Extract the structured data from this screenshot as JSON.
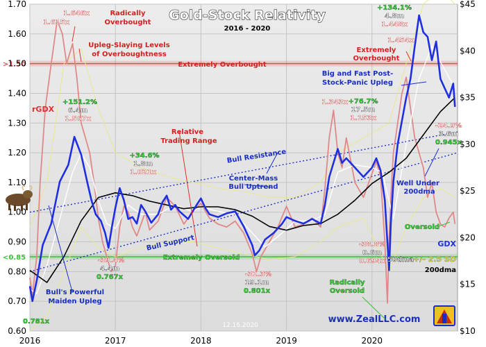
{
  "chart_data": {
    "type": "line",
    "title": "Gold-Stock Relativity",
    "subtitle": "2016 - 2020",
    "date_stamp": "12.16.2020",
    "website": "www.ZealLLC.com",
    "y_left": {
      "label": "rGDX",
      "ylim": [
        0.6,
        1.7
      ],
      "ticks": [
        "0.60",
        "0.70",
        "0.80",
        "0.90",
        "1.00",
        "1.10",
        "1.20",
        "1.30",
        "1.40",
        "1.50",
        "1.60",
        "1.70"
      ]
    },
    "y_right": {
      "label": "GDX",
      "ylim": [
        10,
        45
      ],
      "ticks": [
        "$10",
        "$15",
        "$20",
        "$25",
        "$30",
        "$35",
        "$40",
        "$45"
      ]
    },
    "x_ticks": [
      "2016",
      "2017",
      "2018",
      "2019",
      "2020"
    ],
    "x_range": [
      2016.0,
      2021.0
    ],
    "legend": {
      "gdx": "GDX",
      "ma50": "50dma",
      "sd": "+/- 2.5 SD",
      "ma200": "200dma"
    },
    "reference_lines": [
      {
        "label": ">1.50",
        "value": 1.5,
        "color": "#e34a4a"
      },
      {
        "label": "<0.85",
        "value": 0.85,
        "color": "#38c038"
      }
    ],
    "annotations": [
      {
        "id": "a1",
        "text": "Radically",
        "style": "red"
      },
      {
        "id": "a2",
        "text": "Overbought",
        "style": "red"
      },
      {
        "id": "a3",
        "text": "1.646x",
        "style": "white-red"
      },
      {
        "id": "a4",
        "text": "1.615x",
        "style": "white-red"
      },
      {
        "id": "a5",
        "text": "Upleg-Slaying Levels",
        "style": "red"
      },
      {
        "id": "a6",
        "text": "of Overboughtness",
        "style": "red"
      },
      {
        "id": "a7",
        "text": "Extremely Overbought",
        "style": "red"
      },
      {
        "id": "a8",
        "text": "+151.2%",
        "style": "green"
      },
      {
        "id": "a9",
        "text": "6.4m",
        "style": "white"
      },
      {
        "id": "a10",
        "text": "1.567x",
        "style": "white-red"
      },
      {
        "id": "a11",
        "text": "Relative",
        "style": "red"
      },
      {
        "id": "a12",
        "text": "Trading Range",
        "style": "red"
      },
      {
        "id": "a13",
        "text": "+34.6%",
        "style": "green"
      },
      {
        "id": "a14",
        "text": "1.8m",
        "style": "white"
      },
      {
        "id": "a15",
        "text": "1.021x",
        "style": "white-red"
      },
      {
        "id": "a16",
        "text": "Bull Resistance",
        "style": "blue"
      },
      {
        "id": "a17",
        "text": "Center-Mass",
        "style": "blue"
      },
      {
        "id": "a18",
        "text": "Bull Uptrend",
        "style": "blue"
      },
      {
        "id": "a19",
        "text": "Bull Support",
        "style": "blue"
      },
      {
        "id": "a20",
        "text": "Extremely Oversold",
        "style": "green"
      },
      {
        "id": "a21",
        "text": "-39.4%",
        "style": "white-red"
      },
      {
        "id": "a22",
        "text": "4.4m",
        "style": "white"
      },
      {
        "id": "a23",
        "text": "0.767x",
        "style": "green"
      },
      {
        "id": "a24",
        "text": "-31.3%",
        "style": "white-red"
      },
      {
        "id": "a25",
        "text": "19.1m",
        "style": "white"
      },
      {
        "id": "a26",
        "text": "0.801x",
        "style": "green"
      },
      {
        "id": "a27",
        "text": "Bull's Powerful",
        "style": "blue"
      },
      {
        "id": "a28",
        "text": "Maiden Upleg",
        "style": "blue"
      },
      {
        "id": "a29",
        "text": "0.781x",
        "style": "green"
      },
      {
        "id": "a30",
        "text": "1.343x",
        "style": "white-red"
      },
      {
        "id": "a31",
        "text": "+76.7%",
        "style": "green"
      },
      {
        "id": "a32",
        "text": "17.5m",
        "style": "white"
      },
      {
        "id": "a33",
        "text": "1.153x",
        "style": "white-red"
      },
      {
        "id": "a34",
        "text": "+134.1%",
        "style": "green"
      },
      {
        "id": "a35",
        "text": "4.8m",
        "style": "white"
      },
      {
        "id": "a36",
        "text": "1.448x",
        "style": "white-red"
      },
      {
        "id": "a37",
        "text": "1.454x",
        "style": "white-red"
      },
      {
        "id": "a38",
        "text": "Extremely",
        "style": "red"
      },
      {
        "id": "a39",
        "text": "Overbought",
        "style": "red"
      },
      {
        "id": "a40",
        "text": "Big and Fast Post-",
        "style": "blue"
      },
      {
        "id": "a41",
        "text": "Stock-Panic Upleg",
        "style": "blue"
      },
      {
        "id": "a42",
        "text": "-24.9%",
        "style": "white-red"
      },
      {
        "id": "a43",
        "text": "3.6m",
        "style": "white"
      },
      {
        "id": "a44",
        "text": "0.945x",
        "style": "green"
      },
      {
        "id": "a45",
        "text": "Well Under",
        "style": "blue"
      },
      {
        "id": "a46",
        "text": "200dma",
        "style": "blue"
      },
      {
        "id": "a47",
        "text": "Oversold",
        "style": "green"
      },
      {
        "id": "a48",
        "text": "-38.8%",
        "style": "white-red"
      },
      {
        "id": "a49",
        "text": "0.6m",
        "style": "white"
      },
      {
        "id": "a50",
        "text": "0.694x",
        "style": "white-red"
      },
      {
        "id": "a51",
        "text": "Radically",
        "style": "green"
      },
      {
        "id": "a52",
        "text": "Oversold",
        "style": "green"
      }
    ],
    "series": [
      {
        "name": "GDX",
        "axis": "right",
        "color": "#1f2fe0",
        "x": [
          2016.0,
          2016.03,
          2016.08,
          2016.15,
          2016.25,
          2016.35,
          2016.45,
          2016.52,
          2016.6,
          2016.67,
          2016.72,
          2016.77,
          2016.83,
          2016.88,
          2016.92,
          2016.96,
          2017.0,
          2017.05,
          2017.1,
          2017.15,
          2017.2,
          2017.25,
          2017.3,
          2017.35,
          2017.42,
          2017.5,
          2017.55,
          2017.6,
          2017.65,
          2017.7,
          2017.75,
          2017.85,
          2017.95,
          2018.0,
          2018.05,
          2018.1,
          2018.2,
          2018.3,
          2018.4,
          2018.5,
          2018.6,
          2018.63,
          2018.68,
          2018.75,
          2018.85,
          2018.95,
          2019.0,
          2019.1,
          2019.2,
          2019.3,
          2019.4,
          2019.45,
          2019.5,
          2019.6,
          2019.65,
          2019.7,
          2019.8,
          2019.9,
          2020.0,
          2020.05,
          2020.1,
          2020.15,
          2020.18,
          2020.2,
          2020.22,
          2020.25,
          2020.3,
          2020.35,
          2020.4,
          2020.45,
          2020.5,
          2020.55,
          2020.6,
          2020.65,
          2020.7,
          2020.75,
          2020.8,
          2020.85,
          2020.9,
          2020.95,
          2020.97
        ],
        "values": [
          14.8,
          13.2,
          15.4,
          19.2,
          21.5,
          26.0,
          27.8,
          30.8,
          28.9,
          26.0,
          24.0,
          22.5,
          21.8,
          20.5,
          18.9,
          21.2,
          23.2,
          25.3,
          24.0,
          22.0,
          22.2,
          21.5,
          23.5,
          22.8,
          21.6,
          22.5,
          23.8,
          24.5,
          23.0,
          23.5,
          22.8,
          22.0,
          23.5,
          24.2,
          23.2,
          22.5,
          22.2,
          22.6,
          22.8,
          21.2,
          19.2,
          18.1,
          18.6,
          19.8,
          20.5,
          21.5,
          22.2,
          21.8,
          21.5,
          22.0,
          21.5,
          23.5,
          26.5,
          29.5,
          28.0,
          28.5,
          27.5,
          26.5,
          27.5,
          28.5,
          27.2,
          24.0,
          19.5,
          16.5,
          21.5,
          26.0,
          30.0,
          32.5,
          35.0,
          37.0,
          40.5,
          43.8,
          42.0,
          41.5,
          39.0,
          41.0,
          37.0,
          36.0,
          35.0,
          36.5,
          34.0
        ]
      },
      {
        "name": "50dma",
        "axis": "right",
        "color": "#ffffff",
        "x": [
          2016.0,
          2016.08,
          2016.2,
          2016.35,
          2016.5,
          2016.6,
          2016.7,
          2016.8,
          2016.9,
          2017.0,
          2017.15,
          2017.3,
          2017.5,
          2017.7,
          2017.9,
          2018.0,
          2018.2,
          2018.4,
          2018.6,
          2018.75,
          2018.95,
          2019.1,
          2019.3,
          2019.45,
          2019.6,
          2019.8,
          2020.0,
          2020.12,
          2020.25,
          2020.4,
          2020.55,
          2020.7,
          2020.85,
          2020.97
        ],
        "values": [
          14.5,
          14.0,
          17.0,
          22.0,
          27.0,
          29.0,
          27.5,
          24.0,
          21.5,
          21.0,
          23.5,
          22.5,
          22.5,
          23.5,
          22.8,
          23.3,
          22.8,
          22.5,
          20.5,
          19.0,
          20.5,
          21.8,
          21.8,
          22.5,
          27.0,
          27.8,
          27.5,
          27.0,
          22.0,
          30.0,
          37.0,
          40.5,
          38.0,
          36.0
        ]
      },
      {
        "name": "200dma",
        "axis": "right",
        "color": "#000000",
        "x": [
          2016.0,
          2016.2,
          2016.4,
          2016.6,
          2016.8,
          2017.0,
          2017.2,
          2017.4,
          2017.6,
          2017.8,
          2018.0,
          2018.2,
          2018.4,
          2018.6,
          2018.8,
          2019.0,
          2019.2,
          2019.4,
          2019.6,
          2019.8,
          2020.0,
          2020.2,
          2020.4,
          2020.6,
          2020.8,
          2020.97
        ],
        "values": [
          16.5,
          15.2,
          18.0,
          21.8,
          24.3,
          24.8,
          24.5,
          23.9,
          23.5,
          23.1,
          23.3,
          23.3,
          23.0,
          22.3,
          21.2,
          20.8,
          21.3,
          21.5,
          22.5,
          24.0,
          25.8,
          27.0,
          28.5,
          31.0,
          33.5,
          35.0
        ]
      },
      {
        "name": "rGDX",
        "axis": "left",
        "color": "#e08888",
        "x": [
          2016.0,
          2016.03,
          2016.08,
          2016.12,
          2016.18,
          2016.25,
          2016.32,
          2016.38,
          2016.43,
          2016.5,
          2016.55,
          2016.6,
          2016.65,
          2016.7,
          2016.75,
          2016.8,
          2016.85,
          2016.9,
          2016.95,
          2017.0,
          2017.05,
          2017.1,
          2017.15,
          2017.2,
          2017.25,
          2017.3,
          2017.35,
          2017.4,
          2017.5,
          2017.6,
          2017.7,
          2017.8,
          2017.9,
          2018.0,
          2018.1,
          2018.2,
          2018.3,
          2018.4,
          2018.5,
          2018.6,
          2018.65,
          2018.7,
          2018.8,
          2018.9,
          2019.0,
          2019.1,
          2019.2,
          2019.3,
          2019.4,
          2019.45,
          2019.5,
          2019.55,
          2019.6,
          2019.65,
          2019.7,
          2019.8,
          2019.9,
          2020.0,
          2020.05,
          2020.1,
          2020.15,
          2020.18,
          2020.2,
          2020.22,
          2020.25,
          2020.3,
          2020.35,
          2020.4,
          2020.45,
          2020.5,
          2020.55,
          2020.6,
          2020.65,
          2020.7,
          2020.75,
          2020.8,
          2020.85,
          2020.9,
          2020.95,
          2020.97
        ],
        "values": [
          0.78,
          0.72,
          0.85,
          1.1,
          1.35,
          1.5,
          1.646,
          1.6,
          1.5,
          1.567,
          1.45,
          1.3,
          1.25,
          1.2,
          1.1,
          0.98,
          0.9,
          0.85,
          0.8,
          0.82,
          0.95,
          1.02,
          1.0,
          0.95,
          0.92,
          0.96,
          1.0,
          0.94,
          0.97,
          1.05,
          1.02,
          0.96,
          1.0,
          1.03,
          0.98,
          0.96,
          0.95,
          0.97,
          0.93,
          0.86,
          0.8,
          0.85,
          0.9,
          0.95,
          1.02,
          0.95,
          0.96,
          0.98,
          0.95,
          1.08,
          1.25,
          1.343,
          1.2,
          1.15,
          1.25,
          1.1,
          1.05,
          1.13,
          1.17,
          1.12,
          0.9,
          0.694,
          0.9,
          1.05,
          1.2,
          1.3,
          1.4,
          1.454,
          1.35,
          1.25,
          1.2,
          1.15,
          1.05,
          1.1,
          1.0,
          0.96,
          0.95,
          0.98,
          1.0,
          0.96
        ]
      },
      {
        "name": "+2.5 SD",
        "axis": "left",
        "color": "#e8e890",
        "x": [
          2016.0,
          2016.2,
          2016.4,
          2016.6,
          2016.8,
          2017.0,
          2017.3,
          2017.6,
          2017.9,
          2018.2,
          2018.5,
          2018.8,
          2019.1,
          2019.4,
          2019.6,
          2019.9,
          2020.2,
          2020.4,
          2020.6,
          2020.8,
          2020.97
        ],
        "values": [
          0.95,
          1.1,
          1.5,
          1.55,
          1.35,
          1.2,
          1.15,
          1.12,
          1.1,
          1.08,
          1.07,
          1.05,
          1.05,
          1.1,
          1.2,
          1.25,
          1.3,
          1.5,
          1.7,
          1.75,
          1.7
        ]
      },
      {
        "name": "-2.5 SD",
        "axis": "left",
        "color": "#e8e890",
        "x": [
          2016.0,
          2016.2,
          2016.4,
          2016.6,
          2016.8,
          2017.0,
          2017.3,
          2017.6,
          2017.9,
          2018.2,
          2018.5,
          2018.8,
          2019.1,
          2019.4,
          2019.6,
          2019.9,
          2020.2,
          2020.4,
          2020.6,
          2020.8,
          2020.97
        ],
        "values": [
          0.6,
          0.65,
          0.8,
          0.95,
          0.88,
          0.85,
          0.88,
          0.9,
          0.9,
          0.88,
          0.86,
          0.84,
          0.85,
          0.9,
          0.95,
          0.98,
          0.8,
          0.95,
          1.05,
          1.08,
          1.05
        ]
      }
    ],
    "trendlines": [
      {
        "name": "Bull Resistance",
        "x": [
          2016.0,
          2021.0
        ],
        "values": [
          1.0,
          1.27
        ]
      },
      {
        "name": "Bull Support",
        "x": [
          2016.0,
          2021.0
        ],
        "values": [
          0.8,
          1.2
        ]
      }
    ],
    "background": "#e3e3e3",
    "grid": true
  }
}
